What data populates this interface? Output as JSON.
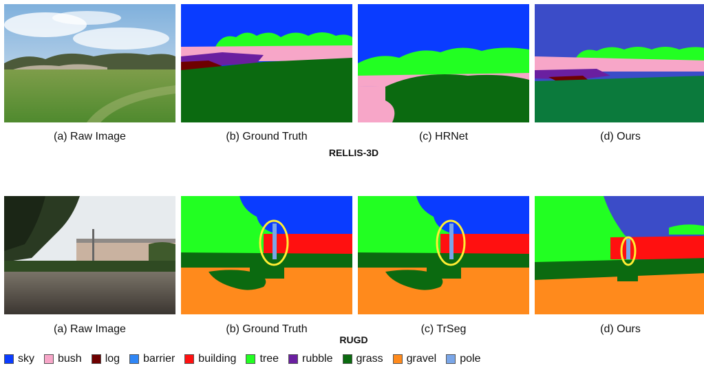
{
  "rows": [
    {
      "dataset": "RELLIS-3D",
      "captions": [
        "(a) Raw Image",
        "(b) Ground Truth",
        "(c) HRNet",
        "(d) Ours"
      ]
    },
    {
      "dataset": "RUGD",
      "captions": [
        "(a) Raw Image",
        "(b) Ground Truth",
        "(c) TrSeg",
        "(d) Ours"
      ]
    }
  ],
  "legend": [
    {
      "label": "sky",
      "color": "#0a3cff"
    },
    {
      "label": "bush",
      "color": "#f7a6c8"
    },
    {
      "label": "log",
      "color": "#6e0000"
    },
    {
      "label": "barrier",
      "color": "#2f86f6"
    },
    {
      "label": "building",
      "color": "#ff1010"
    },
    {
      "label": "tree",
      "color": "#22ff22"
    },
    {
      "label": "rubble",
      "color": "#6a1fa0"
    },
    {
      "label": "grass",
      "color": "#0b6a10"
    },
    {
      "label": "gravel",
      "color": "#ff8a1c"
    },
    {
      "label": "pole",
      "color": "#7aa6e8"
    }
  ]
}
